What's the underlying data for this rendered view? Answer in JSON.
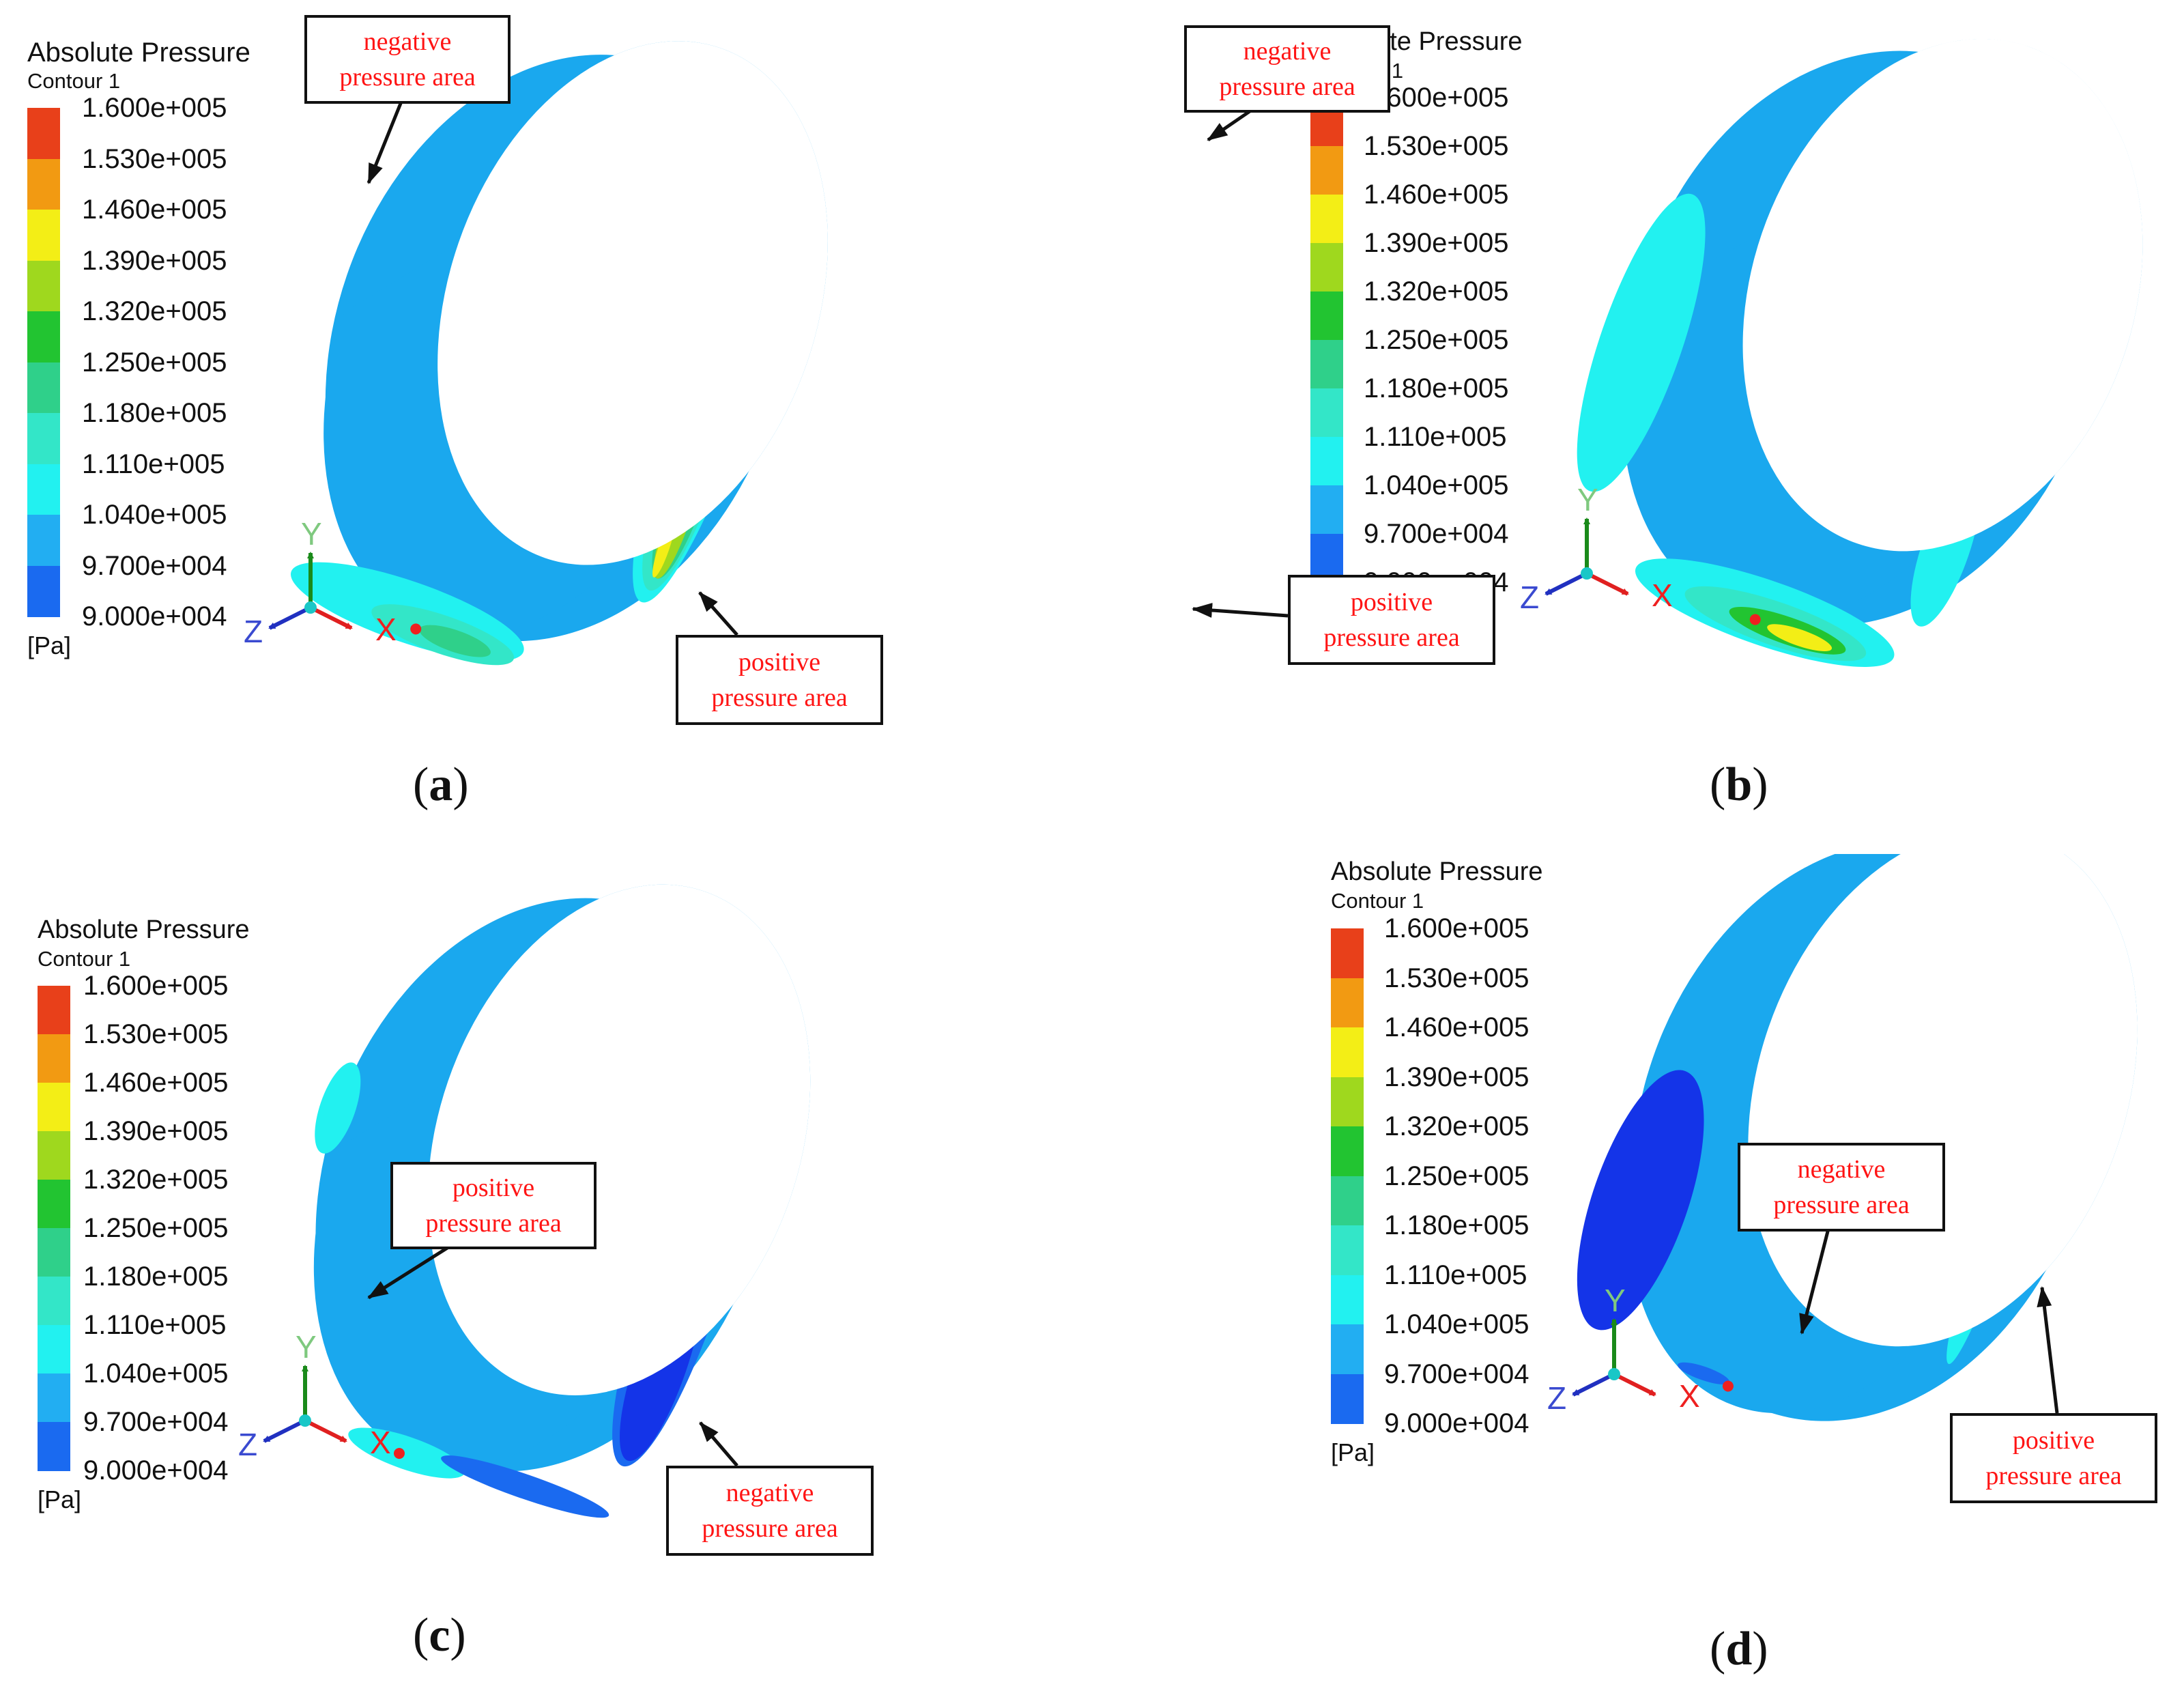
{
  "legend": {
    "title": "Absolute Pressure",
    "subtitle": "Contour 1",
    "unit": "[Pa]",
    "ticks": [
      "1.600e+005",
      "1.530e+005",
      "1.460e+005",
      "1.390e+005",
      "1.320e+005",
      "1.250e+005",
      "1.180e+005",
      "1.110e+005",
      "1.040e+005",
      "9.700e+004",
      "9.000e+004"
    ],
    "colors": [
      "#e8401a",
      "#f29a12",
      "#f3ee16",
      "#9fd81e",
      "#22c431",
      "#2fd08a",
      "#33e6c8",
      "#22f1f0",
      "#22aef2",
      "#1a6af0",
      "#1434e8"
    ]
  },
  "axes": {
    "x": "X",
    "y": "Y",
    "z": "Z"
  },
  "panels": [
    {
      "id": "a",
      "caption": "a",
      "callouts": [
        [
          "negative",
          "pressure area"
        ],
        [
          "positive",
          "pressure area"
        ]
      ]
    },
    {
      "id": "b",
      "caption": "b",
      "callouts": [
        [
          "negative",
          "pressure area"
        ],
        [
          "positive",
          "pressure area"
        ]
      ]
    },
    {
      "id": "c",
      "caption": "c",
      "callouts": [
        [
          "positive",
          "pressure area"
        ],
        [
          "negative",
          "pressure area"
        ]
      ]
    },
    {
      "id": "d",
      "caption": "d",
      "callouts": [
        [
          "negative",
          "pressure area"
        ],
        [
          "positive",
          "pressure area"
        ]
      ]
    }
  ]
}
